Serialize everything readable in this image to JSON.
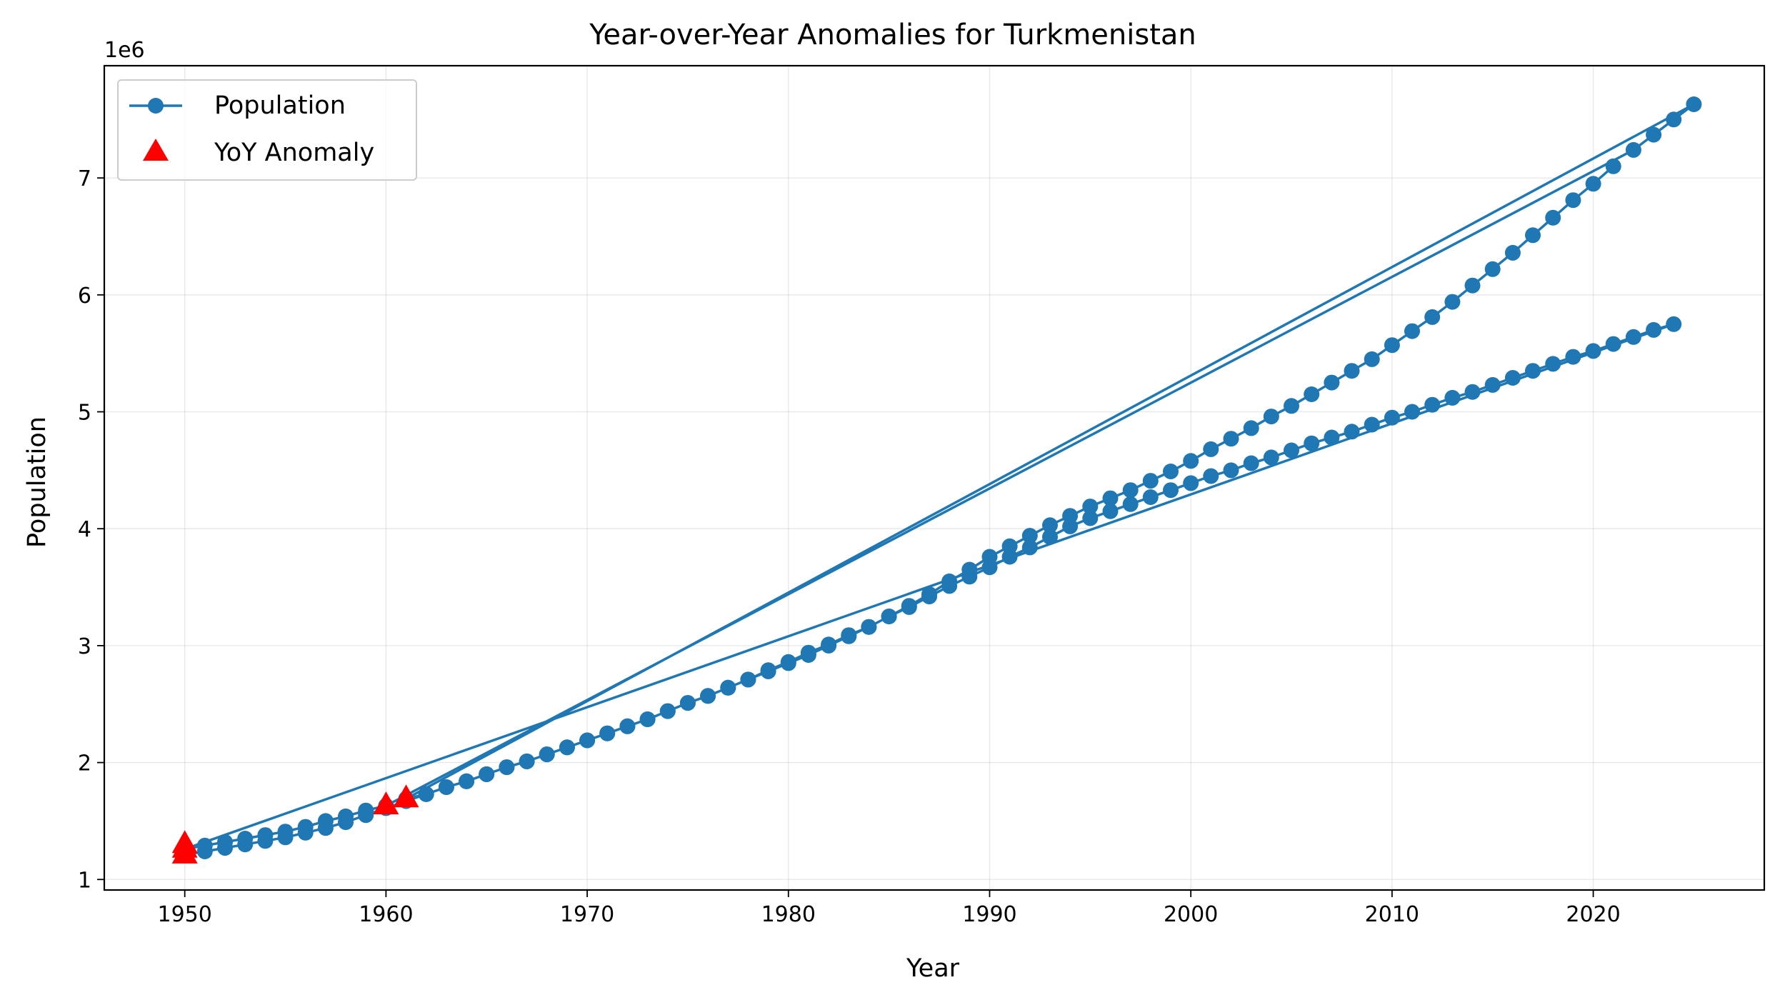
{
  "chart_data": {
    "type": "line",
    "title": "Year-over-Year Anomalies for Turkmenistan",
    "xlabel": "Year",
    "ylabel": "Population",
    "y_offset_label": "1e6",
    "xlim": [
      1946,
      2028.5
    ],
    "ylim": [
      910000,
      7960000
    ],
    "xticks": [
      1950,
      1960,
      1970,
      1980,
      1990,
      2000,
      2010,
      2020
    ],
    "yticks": [
      1000000,
      2000000,
      3000000,
      4000000,
      5000000,
      6000000,
      7000000
    ],
    "ytick_labels": [
      "1",
      "2",
      "3",
      "4",
      "5",
      "6",
      "7"
    ],
    "grid": true,
    "legend_position": "upper-left",
    "colors": {
      "line": "#1f77b4",
      "anomaly": "#ff0000",
      "grid": "#b0b0b0"
    },
    "series": [
      {
        "name": "Population",
        "style": "line-with-circle-markers",
        "segments": [
          {
            "years": [
              1950,
              1951,
              1952,
              1953,
              1954,
              1955,
              1956,
              1957,
              1958,
              1959,
              1960,
              1961,
              1962,
              1963,
              1964,
              1965,
              1966,
              1967,
              1968,
              1969,
              1970,
              1971,
              1972,
              1973,
              1974,
              1975,
              1976,
              1977,
              1978,
              1979,
              1980,
              1981,
              1982,
              1983,
              1984,
              1985,
              1986,
              1987,
              1988,
              1989,
              1990,
              1991,
              1992,
              1993,
              1994,
              1995,
              1996,
              1997,
              1998,
              1999,
              2000,
              2001,
              2002,
              2003,
              2004,
              2005,
              2006,
              2007,
              2008,
              2009,
              2010,
              2011,
              2012,
              2013,
              2014,
              2015,
              2016,
              2017,
              2018,
              2019,
              2020,
              2021,
              2022,
              2023,
              2024
            ],
            "values": [
              1210000,
              1240000,
              1270000,
              1300000,
              1330000,
              1360000,
              1400000,
              1440000,
              1490000,
              1550000,
              1610000,
              1670000,
              1730000,
              1790000,
              1840000,
              1900000,
              1960000,
              2010000,
              2070000,
              2130000,
              2190000,
              2250000,
              2310000,
              2370000,
              2440000,
              2510000,
              2570000,
              2640000,
              2710000,
              2780000,
              2850000,
              2920000,
              3000000,
              3080000,
              3160000,
              3250000,
              3330000,
              3420000,
              3510000,
              3590000,
              3670000,
              3760000,
              3840000,
              3930000,
              4020000,
              4090000,
              4150000,
              4210000,
              4270000,
              4330000,
              4390000,
              4450000,
              4500000,
              4560000,
              4610000,
              4670000,
              4730000,
              4780000,
              4830000,
              4890000,
              4950000,
              5000000,
              5060000,
              5120000,
              5170000,
              5230000,
              5290000,
              5350000,
              5410000,
              5470000,
              5520000,
              5580000,
              5640000,
              5700000,
              5750000
            ]
          },
          {
            "years": [
              1950,
              1951,
              1952,
              1953,
              1954,
              1955,
              1956,
              1957,
              1958,
              1959,
              1960
            ],
            "values": [
              1260000,
              1290000,
              1320000,
              1350000,
              1380000,
              1410000,
              1450000,
              1500000,
              1540000,
              1590000,
              1630000
            ]
          },
          {
            "years": [
              2022,
              2023,
              2024,
              2025
            ],
            "values": [
              7240000,
              7370000,
              7500000,
              7630000
            ]
          },
          {
            "years": [
              1961,
              1962,
              1963,
              1964,
              1965,
              1966,
              1967,
              1968,
              1969,
              1970,
              1971,
              1972,
              1973,
              1974,
              1975,
              1976,
              1977,
              1978,
              1979,
              1980,
              1981,
              1982,
              1983,
              1984,
              1985,
              1986,
              1987,
              1988,
              1989,
              1990,
              1991,
              1992,
              1993,
              1994,
              1995,
              1996,
              1997,
              1998,
              1999,
              2000,
              2001,
              2002,
              2003,
              2004,
              2005,
              2006,
              2007,
              2008,
              2009,
              2010,
              2011,
              2012,
              2013,
              2014,
              2015,
              2016,
              2017,
              2018,
              2019,
              2020,
              2021
            ],
            "values": [
              1690000,
              1730000,
              1790000,
              1840000,
              1900000,
              1960000,
              2010000,
              2070000,
              2130000,
              2190000,
              2250000,
              2310000,
              2370000,
              2440000,
              2510000,
              2570000,
              2640000,
              2710000,
              2790000,
              2860000,
              2940000,
              3010000,
              3090000,
              3160000,
              3250000,
              3340000,
              3440000,
              3550000,
              3650000,
              3760000,
              3850000,
              3940000,
              4030000,
              4110000,
              4190000,
              4260000,
              4330000,
              4410000,
              4490000,
              4580000,
              4680000,
              4770000,
              4860000,
              4960000,
              5050000,
              5150000,
              5250000,
              5350000,
              5450000,
              5570000,
              5690000,
              5810000,
              5940000,
              6080000,
              6220000,
              6360000,
              6510000,
              6660000,
              6810000,
              6950000,
              7100000
            ]
          }
        ]
      },
      {
        "name": "YoY Anomaly",
        "style": "red-triangle-markers",
        "years": [
          1950,
          1950,
          1950,
          1960,
          1961
        ],
        "values": [
          1210000,
          1260000,
          1300000,
          1630000,
          1690000
        ]
      }
    ]
  }
}
